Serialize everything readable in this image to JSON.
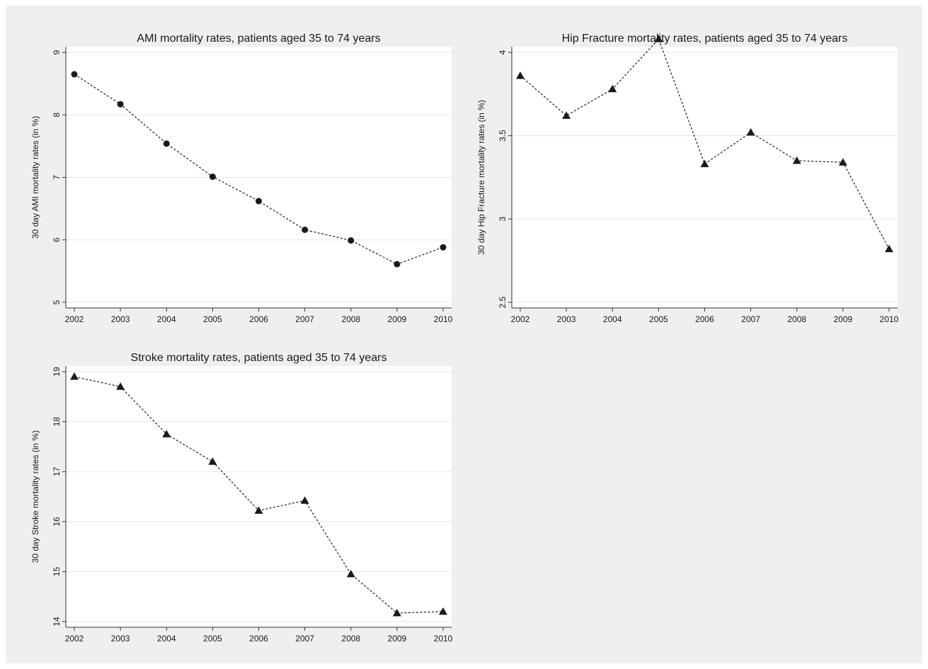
{
  "colors": {
    "outer_background": "#efefef",
    "plot_background": "#ffffff",
    "gridline": "#e6e6e6",
    "marker": "#1a1a1a"
  },
  "chart_data": [
    {
      "type": "line",
      "title": "AMI mortality rates, patients aged 35 to 74 years",
      "xlabel": "",
      "ylabel": "30 day AMI mortality rates (in %)",
      "marker": "circle",
      "line_style": "dashed",
      "x": [
        2002,
        2003,
        2004,
        2005,
        2006,
        2007,
        2008,
        2009,
        2010
      ],
      "values": [
        8.65,
        8.17,
        7.54,
        7.01,
        6.62,
        6.16,
        5.99,
        5.61,
        5.88
      ],
      "ylim": [
        5,
        9
      ],
      "yticks": [
        "5",
        "6",
        "7",
        "8",
        "9"
      ],
      "xticks": [
        "2002",
        "2003",
        "2004",
        "2005",
        "2006",
        "2007",
        "2008",
        "2009",
        "2010"
      ],
      "grid": true
    },
    {
      "type": "line",
      "title": "Hip Fracture mortality rates, patients aged 35 to 74 years",
      "xlabel": "",
      "ylabel": "30 day Hip Fracture mortality rates (in %)",
      "marker": "triangle",
      "line_style": "dashed",
      "x": [
        2002,
        2003,
        2004,
        2005,
        2006,
        2007,
        2008,
        2009,
        2010
      ],
      "values": [
        3.86,
        3.62,
        3.78,
        4.08,
        3.33,
        3.52,
        3.35,
        3.34,
        2.82
      ],
      "ylim": [
        2.5,
        4
      ],
      "yticks": [
        "2.5",
        "3",
        "3.5",
        "4"
      ],
      "xticks": [
        "2002",
        "2003",
        "2004",
        "2005",
        "2006",
        "2007",
        "2008",
        "2009",
        "2010"
      ],
      "grid": true
    },
    {
      "type": "line",
      "title": "Stroke mortality rates, patients aged 35 to 74 years",
      "xlabel": "",
      "ylabel": "30 day Stroke mortality rates (in %)",
      "marker": "triangle",
      "line_style": "dashed",
      "x": [
        2002,
        2003,
        2004,
        2005,
        2006,
        2007,
        2008,
        2009,
        2010
      ],
      "values": [
        18.9,
        18.7,
        17.75,
        17.2,
        16.22,
        16.42,
        14.95,
        14.17,
        14.2
      ],
      "ylim": [
        14,
        19
      ],
      "yticks": [
        "14",
        "15",
        "16",
        "17",
        "18",
        "19"
      ],
      "xticks": [
        "2002",
        "2003",
        "2004",
        "2005",
        "2006",
        "2007",
        "2008",
        "2009",
        "2010"
      ],
      "grid": true
    }
  ]
}
